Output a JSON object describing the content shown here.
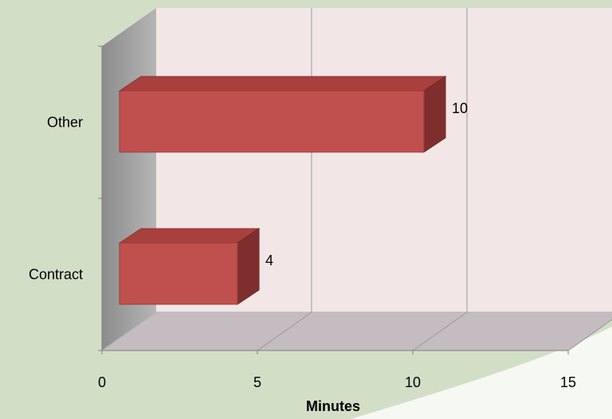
{
  "chart_data": {
    "type": "bar",
    "orientation": "horizontal",
    "three_d": true,
    "categories": [
      "Contract",
      "Other"
    ],
    "values": [
      4,
      10
    ],
    "data_labels": [
      "4",
      "10"
    ],
    "xlabel": "Minutes",
    "xlim": [
      0,
      15
    ],
    "x_ticks": [
      "0",
      "5",
      "10",
      "15"
    ],
    "grid": true,
    "legend": "none",
    "colors": {
      "bar_front": "#c0504d",
      "bar_top": "#a8403d",
      "bar_side": "#7e2f2d",
      "back_wall": "#f2e6e6",
      "side_wall": "#a6a6a6",
      "floor": "#c4bcc0",
      "page_background": "#d3dec7",
      "sweep": "#f6f8f2"
    }
  }
}
